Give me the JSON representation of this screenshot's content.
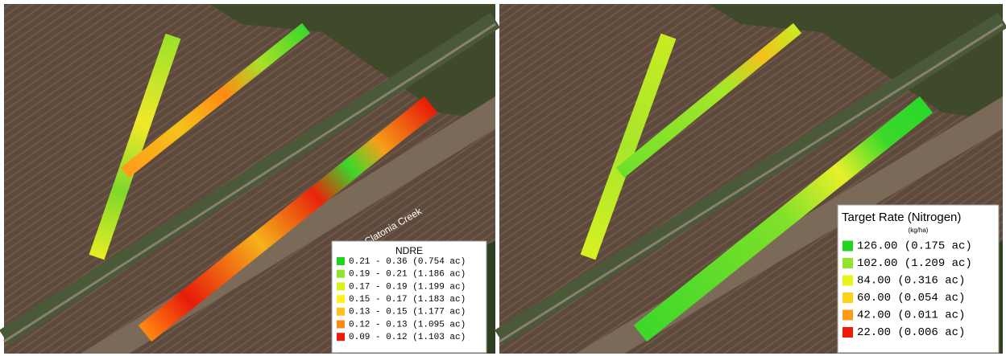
{
  "panels": [
    {
      "legend": {
        "title": "NDRE",
        "items": [
          {
            "label": "0.21 - 0.36 (0.754 ac)",
            "color": "#1fd41f"
          },
          {
            "label": "0.19 - 0.21 (1.186 ac)",
            "color": "#8fe52a"
          },
          {
            "label": "0.17 - 0.19 (1.199 ac)",
            "color": "#d9f21a"
          },
          {
            "label": "0.15 - 0.17 (1.183 ac)",
            "color": "#fff21a"
          },
          {
            "label": "0.13 - 0.15 (1.177 ac)",
            "color": "#ffc21a"
          },
          {
            "label": "0.12 - 0.13 (1.095 ac)",
            "color": "#ff8a12"
          },
          {
            "label": "0.09 - 0.12 (1.103 ac)",
            "color": "#f01a0a"
          }
        ]
      },
      "map_label": "Clatonia Creek"
    },
    {
      "legend": {
        "title": "Target Rate (Nitrogen)",
        "unit": "(kg/ha)",
        "items": [
          {
            "label": "126.00 (0.175 ac)",
            "color": "#1fd41f"
          },
          {
            "label": "102.00 (1.209 ac)",
            "color": "#8fe52a"
          },
          {
            "label": "84.00 (0.316 ac)",
            "color": "#e6f51a"
          },
          {
            "label": "60.00 (0.054 ac)",
            "color": "#ffd21a"
          },
          {
            "label": "42.00 (0.011 ac)",
            "color": "#ff9a12"
          },
          {
            "label": "22.00 (0.006 ac)",
            "color": "#f01a0a"
          }
        ]
      }
    }
  ]
}
